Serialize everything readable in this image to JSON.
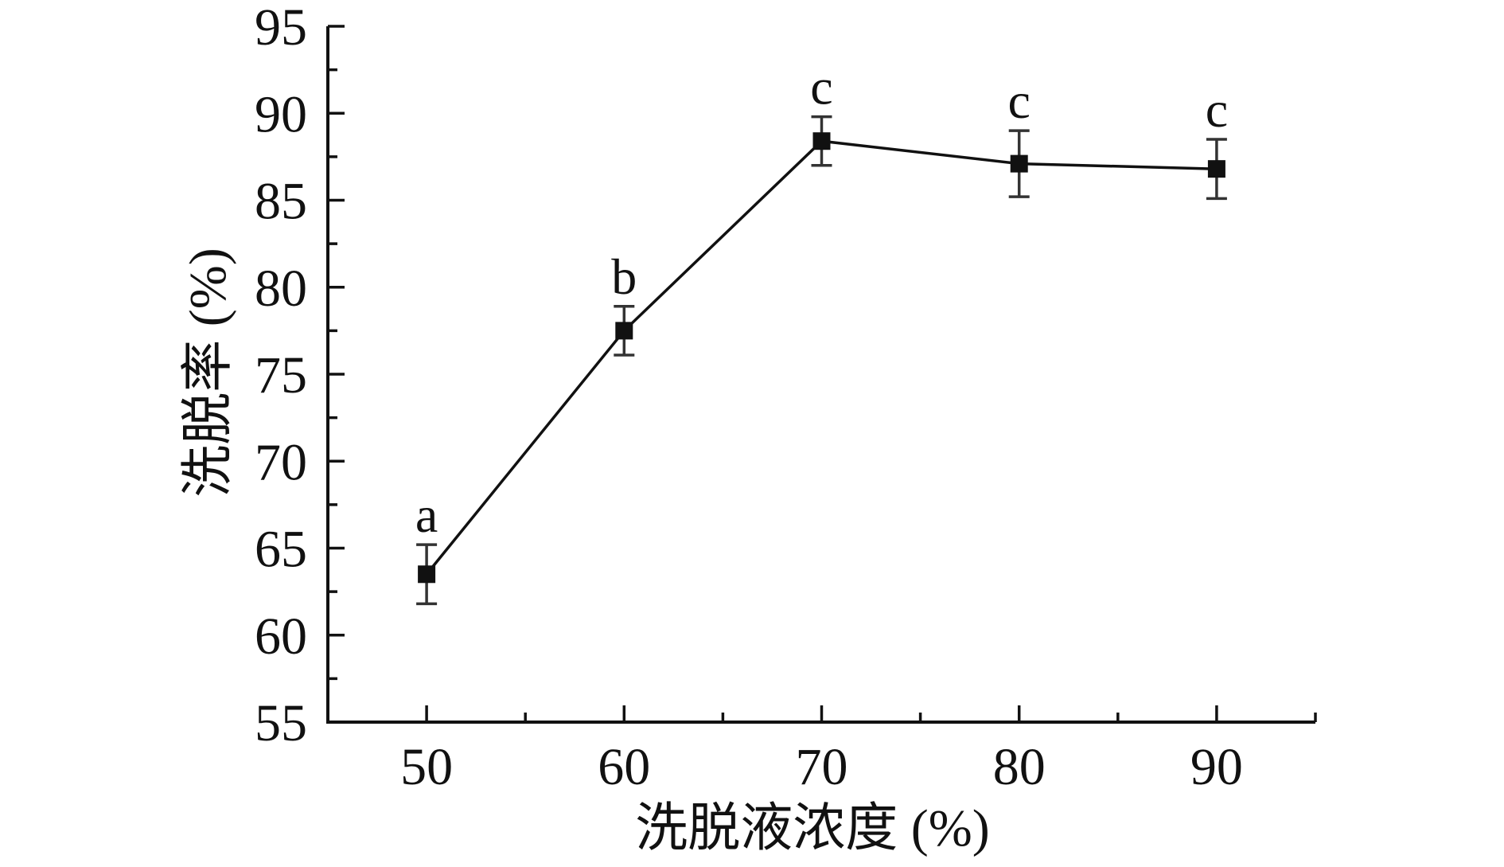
{
  "figure": {
    "background": "#ffffff",
    "ink_color": "#111111",
    "error_bar_color": "#333333"
  },
  "chart_data": {
    "type": "line",
    "title": "",
    "xlabel": "洗脱液浓度 (%)",
    "ylabel": "洗脱率 (%)",
    "x": [
      50,
      60,
      70,
      80,
      90
    ],
    "series": [
      {
        "name": "洗脱率",
        "values": [
          63.5,
          77.5,
          88.4,
          87.1,
          86.8
        ],
        "errors": [
          1.7,
          1.4,
          1.4,
          1.9,
          1.7
        ],
        "point_labels": [
          "a",
          "b",
          "c",
          "c",
          "c"
        ],
        "marker": "filled-square",
        "line_color": "#111111"
      }
    ],
    "xlim": [
      45,
      95
    ],
    "ylim": [
      55,
      95
    ],
    "x_major_ticks": [
      50,
      60,
      70,
      80,
      90
    ],
    "x_minor_step": 5,
    "y_major_step": 5,
    "y_minor_step": 2.5,
    "grid": false,
    "legend": "none",
    "tick_direction": "in"
  }
}
